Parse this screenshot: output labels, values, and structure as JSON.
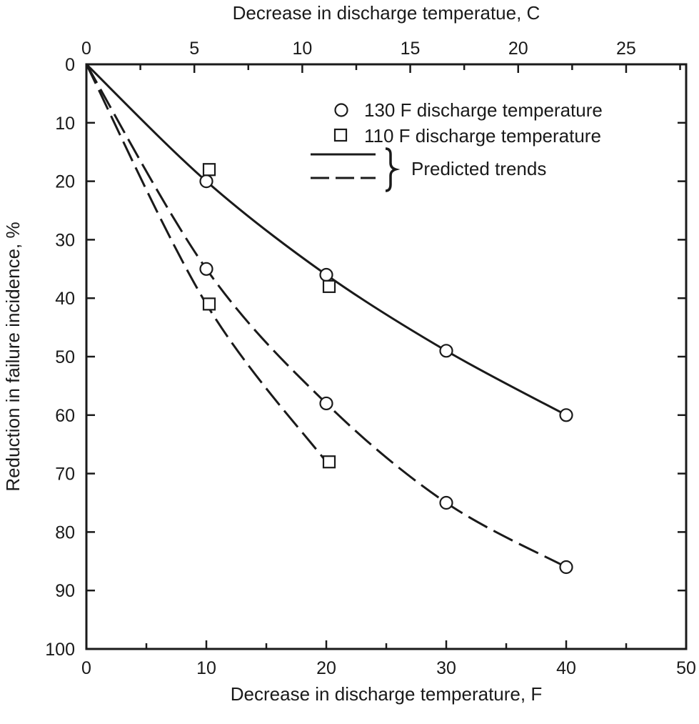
{
  "chart_data": {
    "type": "line",
    "title": "",
    "xlabel": "Decrease in discharge temperature, F",
    "x2label": "Decrease in discharge temperatue, C",
    "ylabel": "Reduction in failure incidence, %",
    "xlim": [
      0,
      50
    ],
    "x2lim": [
      0,
      27.78
    ],
    "ylim": [
      0,
      100
    ],
    "y_inverted": true,
    "x_ticks": [
      "0",
      "10",
      "20",
      "30",
      "40",
      "50"
    ],
    "x2_ticks": [
      "0",
      "5",
      "10",
      "15",
      "20",
      "25"
    ],
    "y_ticks": [
      "0",
      "10",
      "20",
      "30",
      "40",
      "50",
      "60",
      "70",
      "80",
      "90",
      "100"
    ],
    "grid": false,
    "legend_position": "top-right",
    "legend": {
      "circle_label": "130 F discharge temperature",
      "square_label": "110 F discharge temperature",
      "trend_label": "Predicted trends"
    },
    "series": [
      {
        "name": "130 F discharge temperature",
        "marker": "circle",
        "x": [
          10,
          20,
          30,
          40
        ],
        "y": [
          20,
          36,
          49,
          60
        ]
      },
      {
        "name": "130 F discharge temperature",
        "marker": "circle",
        "x": [
          10,
          20,
          30,
          40
        ],
        "y": [
          35,
          58,
          75,
          86
        ]
      },
      {
        "name": "110 F discharge temperature",
        "marker": "square",
        "x": [
          10,
          20
        ],
        "y": [
          18,
          38
        ]
      },
      {
        "name": "110 F discharge temperature",
        "marker": "square",
        "x": [
          10,
          20
        ],
        "y": [
          41,
          68
        ]
      }
    ],
    "trend_lines": [
      {
        "style": "solid",
        "x": [
          0,
          10,
          20,
          30,
          40
        ],
        "y": [
          0,
          20,
          36,
          49,
          60
        ]
      },
      {
        "style": "dashed",
        "x": [
          0,
          10,
          20,
          30,
          40
        ],
        "y": [
          0,
          35,
          58,
          75,
          86
        ]
      },
      {
        "style": "dashed",
        "x": [
          0,
          10,
          20
        ],
        "y": [
          0,
          41,
          68
        ]
      }
    ],
    "colors": {
      "ink": "#1a1a1a",
      "background": "#ffffff"
    }
  }
}
